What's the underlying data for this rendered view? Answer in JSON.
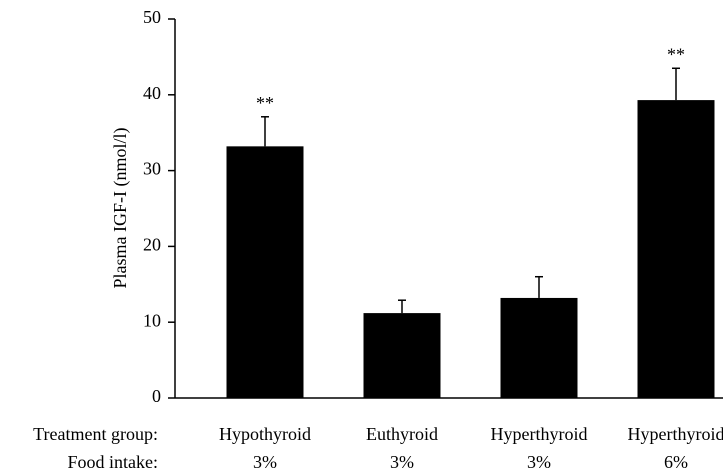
{
  "chart_data": {
    "type": "bar",
    "y_label": "Plasma IGF-I (nmol/l)",
    "row_labels": [
      "Treatment group:",
      "Food intake:"
    ],
    "categories": [
      "Hypothyroid",
      "Euthyroid",
      "Hyperthyroid",
      "Hyperthyroid"
    ],
    "food_intake": [
      "3%",
      "3%",
      "3%",
      "6%"
    ],
    "values": [
      33.2,
      11.2,
      13.2,
      39.3
    ],
    "errors": [
      3.9,
      1.7,
      2.8,
      4.2
    ],
    "annotations": [
      "**",
      null,
      null,
      "**"
    ],
    "color": "#000000",
    "ylim": [
      0,
      50
    ],
    "yticks": [
      0,
      10,
      20,
      30,
      40,
      50
    ],
    "grid": false
  }
}
